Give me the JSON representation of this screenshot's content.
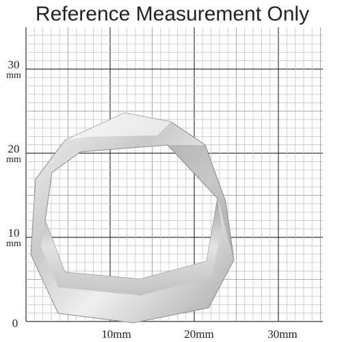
{
  "header": {
    "title": "Reference Measurement Only"
  },
  "x_labels": [
    "10mm",
    "20mm",
    "30mm"
  ],
  "y_labels": [
    {
      "number": "30",
      "unit": "mm"
    },
    {
      "number": "20",
      "unit": "mm"
    },
    {
      "number": "10",
      "unit": "mm"
    }
  ],
  "origin": "0"
}
